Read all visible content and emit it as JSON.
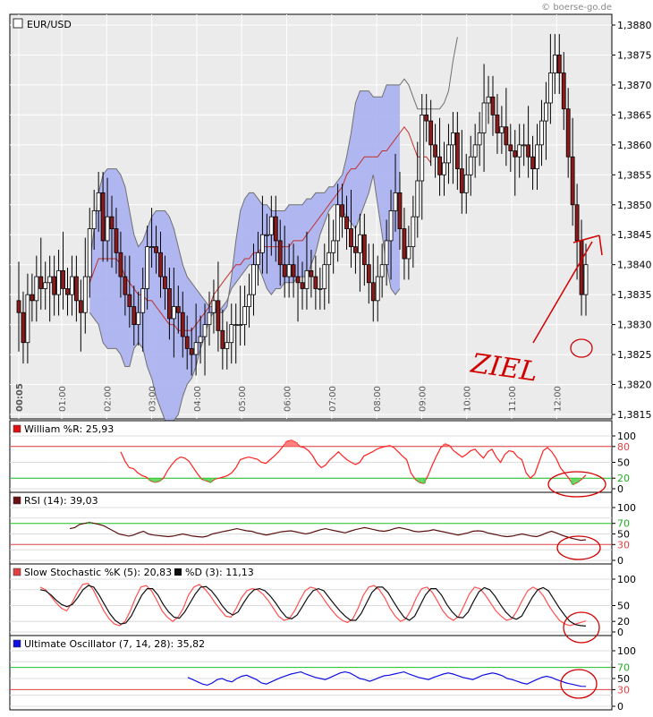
{
  "copyright": "© boerse-go.de",
  "colors": {
    "band": "#aab0f0",
    "band_edge": "#707070",
    "sma": "#c03030",
    "candle_up": "#ffffff",
    "candle_down": "#8b1a1a",
    "williams": "#ff2020",
    "rsi": "#5a1010",
    "stoch_k": "#ff5050",
    "stoch_d": "#101010",
    "uo": "#1010e0",
    "level_red": "#e04040",
    "level_green": "#20c020",
    "annotation": "#d00000"
  },
  "chart_data": [
    {
      "type": "candlestick",
      "title": "EUR/USD",
      "ylim": [
        1.3815,
        1.3881
      ],
      "y_ticks": [
        "1,3880",
        "1,3875",
        "1,3870",
        "1,3865",
        "1,3860",
        "1,3855",
        "1,3850",
        "1,3845",
        "1,3840",
        "1,3835",
        "1,3830",
        "1,3825",
        "1,3820",
        "1,3815"
      ],
      "x_ticks": [
        "00:05",
        "01:00",
        "02:00",
        "03:00",
        "04:00",
        "05:00",
        "06:00",
        "07:00",
        "08:00",
        "09:00",
        "10:00",
        "11:00",
        "12:00"
      ],
      "close": [
        1.3832,
        1.3827,
        1.3835,
        1.3834,
        1.3838,
        1.3836,
        1.3837,
        1.3838,
        1.3835,
        1.3839,
        1.3836,
        1.3835,
        1.3838,
        1.3834,
        1.3832,
        1.3838,
        1.3846,
        1.3849,
        1.3852,
        1.3844,
        1.3848,
        1.3846,
        1.3842,
        1.3838,
        1.3835,
        1.3833,
        1.383,
        1.3832,
        1.3836,
        1.3843,
        1.3843,
        1.3842,
        1.3838,
        1.3836,
        1.3831,
        1.3833,
        1.3832,
        1.3828,
        1.3826,
        1.3825,
        1.3827,
        1.3828,
        1.383,
        1.3832,
        1.3834,
        1.3829,
        1.3826,
        1.3827,
        1.383,
        1.383,
        1.383,
        1.3833,
        1.3835,
        1.384,
        1.3842,
        1.3845,
        1.3845,
        1.3848,
        1.3844,
        1.384,
        1.3838,
        1.384,
        1.3838,
        1.3837,
        1.3836,
        1.3839,
        1.3838,
        1.3836,
        1.3836,
        1.384,
        1.3842,
        1.3844,
        1.385,
        1.3848,
        1.3846,
        1.3843,
        1.3842,
        1.3845,
        1.384,
        1.3837,
        1.3834,
        1.3838,
        1.384,
        1.3844,
        1.3849,
        1.3852,
        1.3846,
        1.3841,
        1.3843,
        1.3848,
        1.3854,
        1.3865,
        1.3864,
        1.386,
        1.3858,
        1.3855,
        1.3857,
        1.386,
        1.3862,
        1.3856,
        1.3852,
        1.3855,
        1.3858,
        1.386,
        1.3862,
        1.3867,
        1.3868,
        1.3865,
        1.3862,
        1.3863,
        1.386,
        1.3859,
        1.3858,
        1.386,
        1.386,
        1.3858,
        1.3856,
        1.386,
        1.3864,
        1.3867,
        1.3872,
        1.3875,
        1.3872,
        1.3866,
        1.3858,
        1.385,
        1.3844,
        1.3835,
        1.384
      ],
      "upper_band": [
        null,
        null,
        null,
        null,
        null,
        null,
        null,
        null,
        null,
        null,
        null,
        null,
        null,
        null,
        null,
        null,
        1.384,
        1.3846,
        1.3852,
        1.3855,
        1.3856,
        1.3856,
        1.3856,
        1.3855,
        1.3853,
        1.3849,
        1.3845,
        1.3843,
        1.3844,
        1.3846,
        1.3848,
        1.3849,
        1.3849,
        1.3849,
        1.3848,
        1.3846,
        1.3843,
        1.384,
        1.3838,
        1.3837,
        1.3836,
        1.3835,
        1.3834,
        1.3833,
        1.3833,
        1.3832,
        1.3832,
        1.3833,
        1.3838,
        1.3844,
        1.3849,
        1.3851,
        1.3852,
        1.3852,
        1.3851,
        1.385,
        1.385,
        1.3849,
        1.3849,
        1.3849,
        1.3849,
        1.385,
        1.385,
        1.385,
        1.385,
        1.3851,
        1.3851,
        1.3852,
        1.3852,
        1.3852,
        1.3853,
        1.3853,
        1.3854,
        1.3855,
        1.3858,
        1.3862,
        1.3867,
        1.3869,
        1.3869,
        1.3869,
        1.3868,
        1.3868,
        1.3868,
        1.387,
        1.387,
        1.387,
        1.387,
        1.3871,
        1.387,
        1.3868,
        1.3866,
        1.3866,
        1.3866,
        1.3866,
        1.3866,
        1.3866,
        1.3867,
        1.3869,
        1.3874,
        1.3878
      ],
      "middle_band": [
        null,
        null,
        null,
        null,
        null,
        null,
        null,
        null,
        null,
        null,
        null,
        null,
        null,
        null,
        null,
        null,
        1.3837,
        1.3839,
        1.3841,
        1.3841,
        1.3841,
        1.3841,
        1.3841,
        1.384,
        1.3838,
        1.3837,
        1.3836,
        1.3835,
        1.3835,
        1.3834,
        1.3834,
        1.3833,
        1.3832,
        1.3831,
        1.383,
        1.383,
        1.3829,
        1.3829,
        1.3829,
        1.3829,
        1.383,
        1.3831,
        1.3832,
        1.3833,
        1.3835,
        1.3836,
        1.3837,
        1.3838,
        1.3839,
        1.384,
        1.384,
        1.3841,
        1.3841,
        1.3842,
        1.3842,
        1.3843,
        1.3843,
        1.3843,
        1.3843,
        1.3843,
        1.3843,
        1.3843,
        1.3844,
        1.3844,
        1.3844,
        1.3845,
        1.3846,
        1.3847,
        1.3848,
        1.3849,
        1.385,
        1.3851,
        1.3852,
        1.3853,
        1.3855,
        1.3856,
        1.3856,
        1.3857,
        1.3858,
        1.3858,
        1.3858,
        1.3858,
        1.3859,
        1.3859,
        1.386,
        1.3861,
        1.3862,
        1.3863,
        1.3862,
        1.386,
        1.3858,
        1.3858,
        1.3858,
        1.3857
      ],
      "lower_band": [
        null,
        null,
        null,
        null,
        null,
        null,
        null,
        null,
        null,
        null,
        null,
        null,
        null,
        null,
        null,
        null,
        1.3832,
        1.3831,
        1.383,
        1.3827,
        1.3826,
        1.3826,
        1.3826,
        1.3825,
        1.3823,
        1.3823,
        1.3826,
        1.3827,
        1.3826,
        1.3823,
        1.3821,
        1.3818,
        1.3816,
        1.3814,
        1.3813,
        1.3814,
        1.3815,
        1.3818,
        1.382,
        1.3821,
        1.3823,
        1.3826,
        1.3828,
        1.3831,
        1.3832,
        1.3832,
        1.3833,
        1.3834,
        1.3836,
        1.3837,
        1.3838,
        1.3839,
        1.384,
        1.384,
        1.384,
        1.3838,
        1.3836,
        1.3835,
        1.3836,
        1.3836,
        1.3837,
        1.3837,
        1.3837,
        1.3838,
        1.3838,
        1.3838,
        1.384,
        1.3842,
        1.3845,
        1.3847,
        1.3849,
        1.385,
        1.385,
        1.3849,
        1.3848,
        1.3847,
        1.3846,
        1.3848,
        1.385,
        1.3852,
        1.3855,
        1.385,
        1.3845,
        1.384,
        1.3836,
        1.3835,
        1.3836
      ]
    },
    {
      "type": "line",
      "title": "William %R: 25,93",
      "ylim": [
        0,
        100
      ],
      "y_ticks": [
        "100",
        "80",
        "50",
        "20",
        "0"
      ],
      "levels": [
        80,
        20
      ],
      "series": [
        {
          "name": "William %R",
          "values": [
            70,
            52,
            40,
            38,
            30,
            25,
            22,
            15,
            12,
            14,
            20,
            35,
            46,
            55,
            60,
            58,
            52,
            40,
            28,
            18,
            15,
            12,
            18,
            20,
            22,
            25,
            30,
            40,
            55,
            58,
            60,
            58,
            56,
            50,
            48,
            55,
            62,
            70,
            80,
            90,
            92,
            88,
            80,
            78,
            72,
            62,
            48,
            40,
            45,
            55,
            62,
            70,
            62,
            55,
            50,
            46,
            50,
            62,
            66,
            70,
            75,
            78,
            80,
            82,
            78,
            70,
            62,
            55,
            30,
            18,
            12,
            10,
            25,
            45,
            62,
            78,
            85,
            82,
            72,
            66,
            60,
            65,
            72,
            75,
            66,
            58,
            70,
            75,
            60,
            50,
            65,
            72,
            70,
            60,
            55,
            30,
            20,
            28,
            50,
            72,
            78,
            70,
            58,
            40,
            30,
            20,
            8,
            12,
            18,
            25.93
          ]
        }
      ]
    },
    {
      "type": "line",
      "title": "RSI (14): 39,03",
      "ylim": [
        0,
        100
      ],
      "y_ticks": [
        "100",
        "70",
        "50",
        "30",
        "0"
      ],
      "levels": [
        70,
        30
      ],
      "series": [
        {
          "name": "RSI (14)",
          "values": [
            60,
            62,
            68,
            70,
            72,
            70,
            68,
            65,
            60,
            55,
            50,
            48,
            46,
            48,
            52,
            55,
            50,
            48,
            47,
            46,
            45,
            46,
            48,
            50,
            48,
            46,
            45,
            44,
            46,
            50,
            52,
            54,
            56,
            58,
            60,
            58,
            56,
            55,
            52,
            50,
            48,
            50,
            52,
            54,
            55,
            56,
            54,
            52,
            50,
            52,
            55,
            58,
            60,
            58,
            56,
            54,
            52,
            55,
            58,
            60,
            62,
            60,
            58,
            56,
            55,
            57,
            60,
            62,
            60,
            58,
            55,
            54,
            55,
            56,
            58,
            56,
            54,
            52,
            50,
            48,
            50,
            52,
            55,
            56,
            55,
            52,
            50,
            48,
            46,
            45,
            46,
            48,
            50,
            48,
            46,
            45,
            48,
            52,
            55,
            52,
            48,
            45,
            42,
            40,
            38,
            39.03
          ]
        }
      ]
    },
    {
      "type": "line",
      "title": "Slow Stochastic %K (5): 20,83",
      "ylim": [
        0,
        100
      ],
      "y_ticks": [
        "100",
        "50",
        "20",
        "0"
      ],
      "levels": [
        80,
        20
      ],
      "series": [
        {
          "name": "Slow Stochastic %K (5): 20,83",
          "values": [
            85,
            80,
            68,
            55,
            45,
            40,
            55,
            75,
            90,
            92,
            80,
            60,
            40,
            25,
            15,
            12,
            20,
            40,
            65,
            85,
            88,
            78,
            60,
            40,
            28,
            20,
            28,
            45,
            70,
            85,
            90,
            82,
            70,
            55,
            42,
            30,
            28,
            45,
            65,
            78,
            82,
            80,
            72,
            60,
            45,
            30,
            22,
            25,
            40,
            60,
            78,
            85,
            82,
            70,
            55,
            42,
            30,
            22,
            18,
            25,
            45,
            70,
            85,
            88,
            80,
            65,
            45,
            30,
            20,
            25,
            42,
            65,
            82,
            85,
            75,
            58,
            40,
            28,
            22,
            30,
            50,
            72,
            85,
            82,
            70,
            55,
            40,
            30,
            22,
            25,
            40,
            60,
            78,
            85,
            80,
            68,
            50,
            35,
            22,
            15,
            12,
            15,
            18,
            20.83
          ]
        },
        {
          "name": "%D (3): 11,13",
          "values": [
            80,
            78,
            70,
            60,
            52,
            48,
            52,
            65,
            80,
            88,
            85,
            70,
            52,
            35,
            22,
            15,
            17,
            30,
            50,
            70,
            82,
            82,
            70,
            52,
            38,
            28,
            26,
            38,
            55,
            72,
            85,
            86,
            78,
            65,
            50,
            38,
            32,
            38,
            55,
            70,
            80,
            82,
            78,
            68,
            55,
            40,
            28,
            25,
            32,
            48,
            65,
            78,
            82,
            78,
            65,
            52,
            40,
            30,
            22,
            22,
            35,
            55,
            75,
            85,
            85,
            75,
            58,
            42,
            28,
            22,
            30,
            50,
            70,
            82,
            82,
            70,
            52,
            38,
            28,
            27,
            38,
            58,
            76,
            84,
            80,
            68,
            52,
            38,
            28,
            24,
            30,
            48,
            66,
            80,
            84,
            78,
            62,
            46,
            32,
            20,
            14,
            12,
            11.13
          ]
        }
      ]
    },
    {
      "type": "line",
      "title": "Ultimate Oscillator (7, 14, 28): 35,82",
      "ylim": [
        0,
        100
      ],
      "y_ticks": [
        "100",
        "70",
        "50",
        "30",
        "0"
      ],
      "levels": [
        70,
        30
      ],
      "series": [
        {
          "name": "Ultimate Oscillator (7, 14, 28)",
          "values": [
            null,
            null,
            null,
            null,
            null,
            null,
            null,
            null,
            null,
            null,
            null,
            null,
            null,
            null,
            null,
            null,
            null,
            null,
            null,
            null,
            null,
            null,
            null,
            null,
            null,
            null,
            null,
            null,
            null,
            null,
            52,
            48,
            44,
            40,
            38,
            42,
            48,
            50,
            46,
            44,
            50,
            54,
            56,
            52,
            48,
            42,
            40,
            44,
            48,
            52,
            55,
            58,
            60,
            62,
            58,
            55,
            52,
            50,
            48,
            52,
            56,
            60,
            62,
            60,
            55,
            50,
            48,
            45,
            48,
            52,
            55,
            56,
            58,
            60,
            62,
            58,
            55,
            52,
            50,
            48,
            52,
            55,
            58,
            60,
            58,
            55,
            52,
            50,
            48,
            52,
            56,
            58,
            60,
            58,
            55,
            50,
            48,
            45,
            42,
            40,
            44,
            48,
            52,
            54,
            52,
            48,
            45,
            42,
            40,
            38,
            36,
            35.82
          ]
        }
      ]
    }
  ],
  "annotation": {
    "text": "ZIEL"
  }
}
